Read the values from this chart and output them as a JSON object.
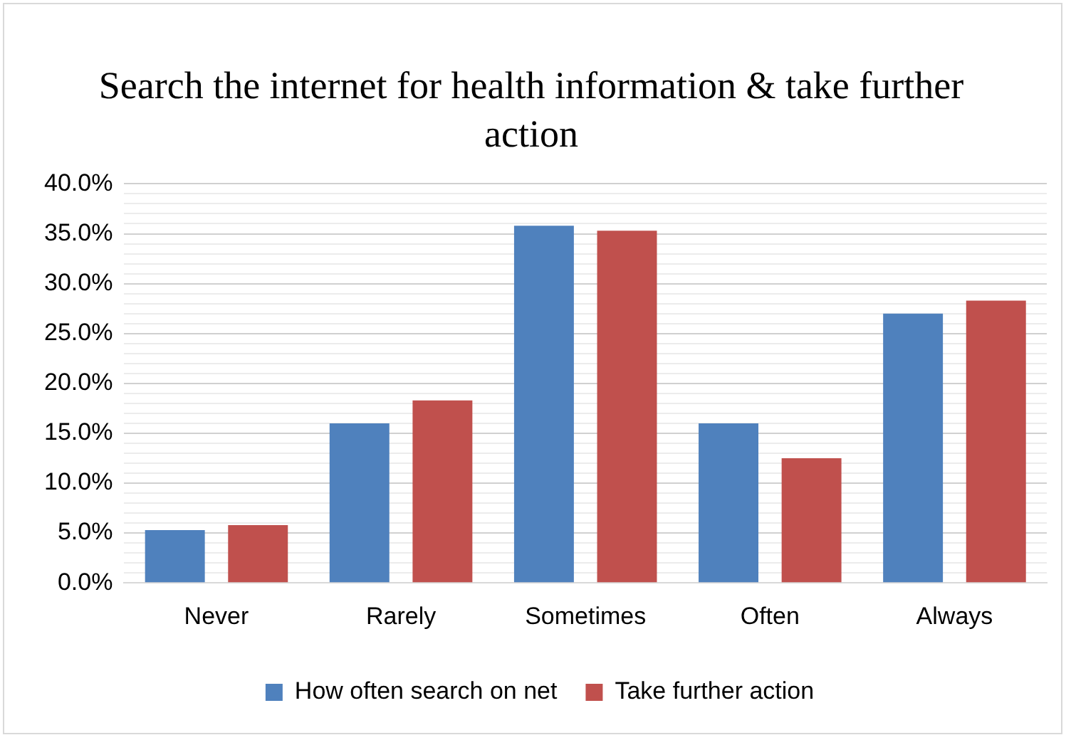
{
  "chart_data": {
    "type": "bar",
    "title": "Search the internet for health information & take further action",
    "categories": [
      "Never",
      "Rarely",
      "Sometimes",
      "Often",
      "Always"
    ],
    "series": [
      {
        "name": "How often search on net",
        "color": "#4f81bd",
        "values": [
          5.3,
          16.0,
          35.8,
          16.0,
          27.0
        ]
      },
      {
        "name": "Take further action",
        "color": "#c0504d",
        "values": [
          5.8,
          18.3,
          35.3,
          12.5,
          28.3
        ]
      }
    ],
    "ylim": [
      0,
      40
    ],
    "yticks": [
      {
        "value": 0,
        "label": "0.0%"
      },
      {
        "value": 1,
        "label": null
      },
      {
        "value": 2,
        "label": null
      },
      {
        "value": 3,
        "label": null
      },
      {
        "value": 4,
        "label": null
      },
      {
        "value": 5,
        "label": "5.0%"
      },
      {
        "value": 6,
        "label": null
      },
      {
        "value": 7,
        "label": null
      },
      {
        "value": 8,
        "label": null
      },
      {
        "value": 9,
        "label": null
      },
      {
        "value": 10,
        "label": "10.0%"
      },
      {
        "value": 11,
        "label": null
      },
      {
        "value": 12,
        "label": null
      },
      {
        "value": 13,
        "label": null
      },
      {
        "value": 14,
        "label": null
      },
      {
        "value": 15,
        "label": "15.0%"
      },
      {
        "value": 16,
        "label": null
      },
      {
        "value": 17,
        "label": null
      },
      {
        "value": 18,
        "label": null
      },
      {
        "value": 19,
        "label": null
      },
      {
        "value": 20,
        "label": "20.0%"
      },
      {
        "value": 21,
        "label": null
      },
      {
        "value": 22,
        "label": null
      },
      {
        "value": 23,
        "label": null
      },
      {
        "value": 24,
        "label": null
      },
      {
        "value": 25,
        "label": "25.0%"
      },
      {
        "value": 26,
        "label": null
      },
      {
        "value": 27,
        "label": null
      },
      {
        "value": 28,
        "label": null
      },
      {
        "value": 29,
        "label": null
      },
      {
        "value": 30,
        "label": "30.0%"
      },
      {
        "value": 31,
        "label": null
      },
      {
        "value": 32,
        "label": null
      },
      {
        "value": 33,
        "label": null
      },
      {
        "value": 34,
        "label": null
      },
      {
        "value": 35,
        "label": "35.0%"
      },
      {
        "value": 36,
        "label": null
      },
      {
        "value": 37,
        "label": null
      },
      {
        "value": 38,
        "label": null
      },
      {
        "value": 39,
        "label": null
      },
      {
        "value": 40,
        "label": "40.0%"
      }
    ],
    "grid": "y",
    "legend": "bottom"
  }
}
